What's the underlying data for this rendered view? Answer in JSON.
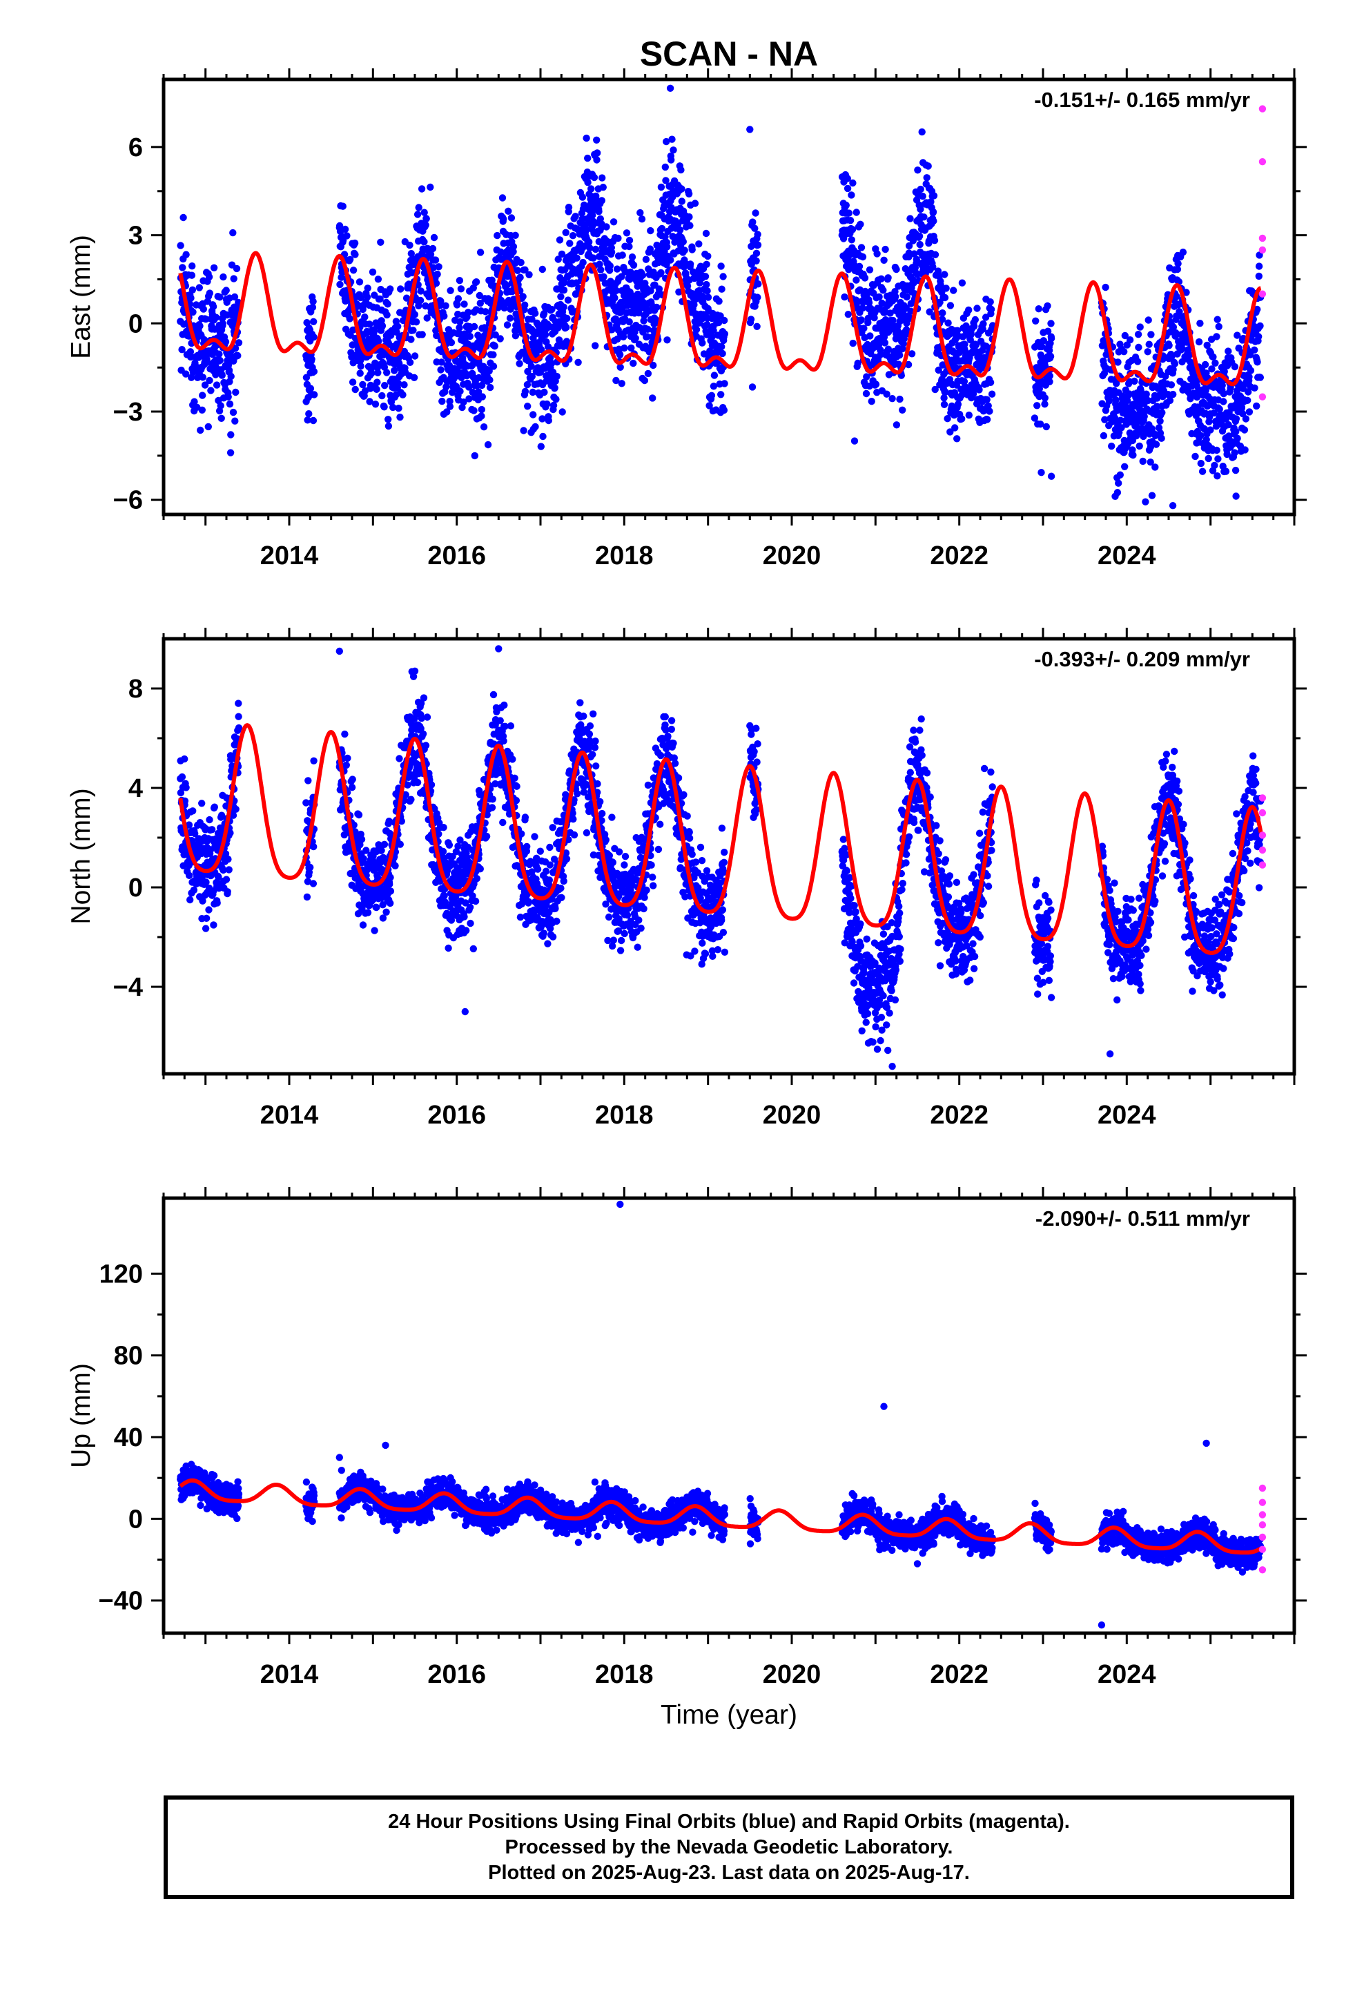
{
  "title": "SCAN - NA",
  "xlabel": "Time (year)",
  "colors": {
    "final": "#0000ff",
    "rapid": "#ff33ff",
    "model": "#ff0000",
    "frame": "#000000"
  },
  "info": {
    "line1": "24 Hour Positions Using Final Orbits (blue) and Rapid Orbits (magenta).",
    "line2": "Processed by the Nevada Geodetic Laboratory.",
    "line3": "Plotted on 2025-Aug-23. Last data on 2025-Aug-17."
  },
  "chart_data": [
    {
      "type": "scatter",
      "component": "east",
      "ylabel": "East (mm)",
      "rate": "-0.151+/- 0.165 mm/yr",
      "xlim": [
        2012.5,
        2026.0
      ],
      "ylim": [
        -6.5,
        8.3
      ],
      "xticks": [
        2014,
        2016,
        2018,
        2020,
        2022,
        2024
      ],
      "yticks": [
        -6,
        -3,
        0,
        3,
        6
      ],
      "ytick_labels": [
        "−6",
        "−3",
        "0",
        "3",
        "6"
      ],
      "data_spans": [
        [
          2012.7,
          2013.4
        ],
        [
          2014.2,
          2014.3
        ],
        [
          2014.6,
          2019.2
        ],
        [
          2019.5,
          2019.6
        ],
        [
          2020.6,
          2022.4
        ],
        [
          2022.9,
          2023.1
        ],
        [
          2023.7,
          2025.6
        ]
      ],
      "model": {
        "trend": [
          2012.5,
          0.3,
          2025.6,
          -1.0
        ],
        "annual_amp": 1.5,
        "annual_phase": 2018.6,
        "semiannual_amp": 0.7,
        "semiannual_phase": 2018.6,
        "offsets": [
          [
            2016.3,
            0.0
          ]
        ]
      },
      "scatter_sd": 1.15,
      "segment_bias": [
        [
          2017.2,
          2019.0,
          1.9
        ],
        [
          2020.6,
          2021.7,
          1.5
        ],
        [
          2023.7,
          2025.6,
          -1.0
        ]
      ],
      "outliers": [
        [
          2018.55,
          8.0
        ],
        [
          2019.5,
          6.6
        ],
        [
          2020.75,
          -4.0
        ],
        [
          2023.1,
          -5.2
        ],
        [
          2024.55,
          -6.2
        ],
        [
          2013.3,
          -4.4
        ],
        [
          2025.3,
          -5.0
        ]
      ],
      "rapid": [
        [
          2025.62,
          7.3
        ],
        [
          2025.62,
          5.5
        ],
        [
          2025.62,
          2.9
        ],
        [
          2025.62,
          2.5
        ],
        [
          2025.62,
          1.0
        ],
        [
          2025.62,
          -2.5
        ]
      ]
    },
    {
      "type": "scatter",
      "component": "north",
      "ylabel": "North (mm)",
      "rate": "-0.393+/- 0.209 mm/yr",
      "xlim": [
        2012.5,
        2026.0
      ],
      "ylim": [
        -7.5,
        10.0
      ],
      "xticks": [
        2014,
        2016,
        2018,
        2020,
        2022,
        2024
      ],
      "yticks": [
        -4,
        0,
        4,
        8
      ],
      "ytick_labels": [
        "−4",
        "0",
        "4",
        "8"
      ],
      "data_spans": [
        [
          2012.7,
          2013.4
        ],
        [
          2014.2,
          2014.3
        ],
        [
          2014.6,
          2019.2
        ],
        [
          2019.5,
          2019.6
        ],
        [
          2020.6,
          2022.4
        ],
        [
          2022.9,
          2023.1
        ],
        [
          2023.7,
          2025.6
        ]
      ],
      "model": {
        "trend": [
          2012.5,
          3.2,
          2025.6,
          -0.4
        ],
        "annual_amp": 3.0,
        "annual_phase": 2018.5,
        "semiannual_amp": 0.6,
        "semiannual_phase": 2018.5,
        "offsets": []
      },
      "scatter_sd": 1.0,
      "segment_bias": [
        [
          2020.6,
          2021.3,
          -2.3
        ]
      ],
      "outliers": [
        [
          2014.6,
          9.5
        ],
        [
          2016.5,
          9.6
        ],
        [
          2015.5,
          8.7
        ],
        [
          2019.5,
          6.5
        ],
        [
          2021.2,
          -7.2
        ],
        [
          2023.8,
          -6.7
        ],
        [
          2016.1,
          -5.0
        ]
      ],
      "rapid": [
        [
          2025.62,
          3.6
        ],
        [
          2025.62,
          3.0
        ],
        [
          2025.62,
          2.1
        ],
        [
          2025.62,
          1.5
        ],
        [
          2025.62,
          0.9
        ]
      ]
    },
    {
      "type": "scatter",
      "component": "up",
      "ylabel": "Up (mm)",
      "rate": "-2.090+/- 0.511 mm/yr",
      "xlim": [
        2012.5,
        2026.0
      ],
      "ylim": [
        -56,
        157
      ],
      "xticks": [
        2014,
        2016,
        2018,
        2020,
        2022,
        2024
      ],
      "yticks": [
        -40,
        0,
        40,
        80,
        120
      ],
      "ytick_labels": [
        "−40",
        "0",
        "40",
        "80",
        "120"
      ],
      "data_spans": [
        [
          2012.7,
          2013.4
        ],
        [
          2014.2,
          2014.3
        ],
        [
          2014.6,
          2019.2
        ],
        [
          2019.5,
          2019.6
        ],
        [
          2020.6,
          2022.4
        ],
        [
          2022.9,
          2023.1
        ],
        [
          2023.7,
          2025.6
        ]
      ],
      "model": {
        "trend": [
          2012.5,
          14.0,
          2025.6,
          -13.5
        ],
        "annual_amp": 4.5,
        "annual_phase": 2018.85,
        "semiannual_amp": 1.0,
        "semiannual_phase": 2018.85,
        "offsets": []
      },
      "scatter_sd": 3.8,
      "segment_bias": [],
      "outliers": [
        [
          2017.95,
          154
        ],
        [
          2021.1,
          55
        ],
        [
          2024.95,
          37
        ],
        [
          2015.15,
          36
        ],
        [
          2014.6,
          30
        ],
        [
          2023.7,
          -52
        ],
        [
          2021.5,
          -22
        ]
      ],
      "rapid": [
        [
          2025.62,
          15
        ],
        [
          2025.62,
          8
        ],
        [
          2025.62,
          2
        ],
        [
          2025.62,
          -3
        ],
        [
          2025.62,
          -9
        ],
        [
          2025.62,
          -15
        ],
        [
          2025.62,
          -25
        ]
      ]
    }
  ]
}
